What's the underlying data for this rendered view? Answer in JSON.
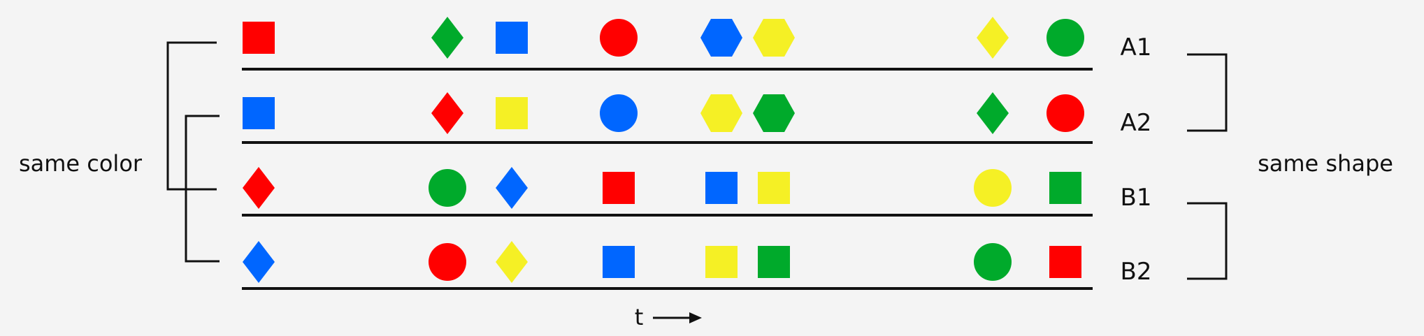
{
  "colors": {
    "red": "#ff0000",
    "green": "#00aa2b",
    "blue": "#0066ff",
    "yellow": "#f5f025",
    "line": "#111111",
    "background": "#f4f4f4"
  },
  "labels": {
    "same_color": "same color",
    "same_shape": "same shape",
    "time": "t"
  },
  "rows": [
    {
      "id": "A1",
      "label": "A1",
      "items": [
        {
          "shape": "square",
          "color": "red"
        },
        {
          "shape": "diamond",
          "color": "green"
        },
        {
          "shape": "square",
          "color": "blue"
        },
        {
          "shape": "circle",
          "color": "red"
        },
        {
          "shape": "hexagon",
          "color": "blue"
        },
        {
          "shape": "hexagon",
          "color": "yellow"
        },
        {
          "shape": "diamond",
          "color": "yellow"
        },
        {
          "shape": "circle",
          "color": "green"
        }
      ]
    },
    {
      "id": "A2",
      "label": "A2",
      "items": [
        {
          "shape": "square",
          "color": "blue"
        },
        {
          "shape": "diamond",
          "color": "red"
        },
        {
          "shape": "square",
          "color": "yellow"
        },
        {
          "shape": "circle",
          "color": "blue"
        },
        {
          "shape": "hexagon",
          "color": "yellow"
        },
        {
          "shape": "hexagon",
          "color": "green"
        },
        {
          "shape": "diamond",
          "color": "green"
        },
        {
          "shape": "circle",
          "color": "red"
        }
      ]
    },
    {
      "id": "B1",
      "label": "B1",
      "items": [
        {
          "shape": "diamond",
          "color": "red"
        },
        {
          "shape": "circle",
          "color": "green"
        },
        {
          "shape": "diamond",
          "color": "blue"
        },
        {
          "shape": "square",
          "color": "red"
        },
        {
          "shape": "square",
          "color": "blue"
        },
        {
          "shape": "square",
          "color": "yellow"
        },
        {
          "shape": "circle",
          "color": "yellow"
        },
        {
          "shape": "square",
          "color": "green"
        }
      ]
    },
    {
      "id": "B2",
      "label": "B2",
      "items": [
        {
          "shape": "diamond",
          "color": "blue"
        },
        {
          "shape": "circle",
          "color": "red"
        },
        {
          "shape": "diamond",
          "color": "yellow"
        },
        {
          "shape": "square",
          "color": "blue"
        },
        {
          "shape": "square",
          "color": "yellow"
        },
        {
          "shape": "square",
          "color": "green"
        },
        {
          "shape": "circle",
          "color": "green"
        },
        {
          "shape": "square",
          "color": "red"
        }
      ]
    }
  ]
}
